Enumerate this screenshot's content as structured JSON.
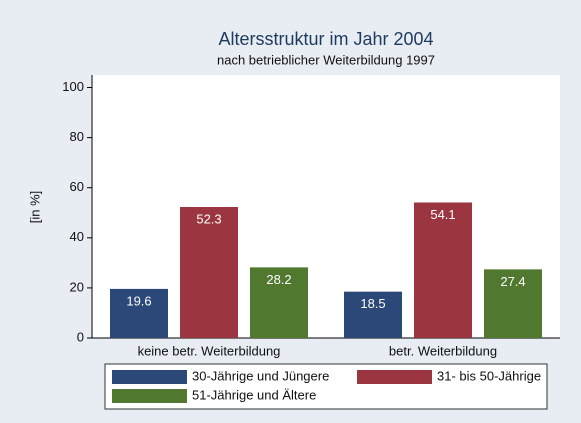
{
  "chart_data": {
    "type": "bar",
    "title": "Altersstruktur im Jahr 2004",
    "subtitle": "nach betrieblicher Weiterbildung 1997",
    "y_label": "[in %]",
    "categories": [
      "keine betr. Weiterbildung",
      "betr. Weiterbildung"
    ],
    "series": [
      {
        "name": "30-Jährige und Jüngere",
        "color": "#2b4878",
        "values": [
          19.6,
          18.5
        ]
      },
      {
        "name": "31- bis 50-Jährige",
        "color": "#9b3641",
        "values": [
          52.3,
          54.1
        ]
      },
      {
        "name": "51-Jährige und Ältere",
        "color": "#50792f",
        "values": [
          28.2,
          27.4
        ]
      }
    ],
    "ylim": [
      0,
      105
    ],
    "yticks": [
      0,
      20,
      40,
      60,
      80,
      100
    ]
  }
}
